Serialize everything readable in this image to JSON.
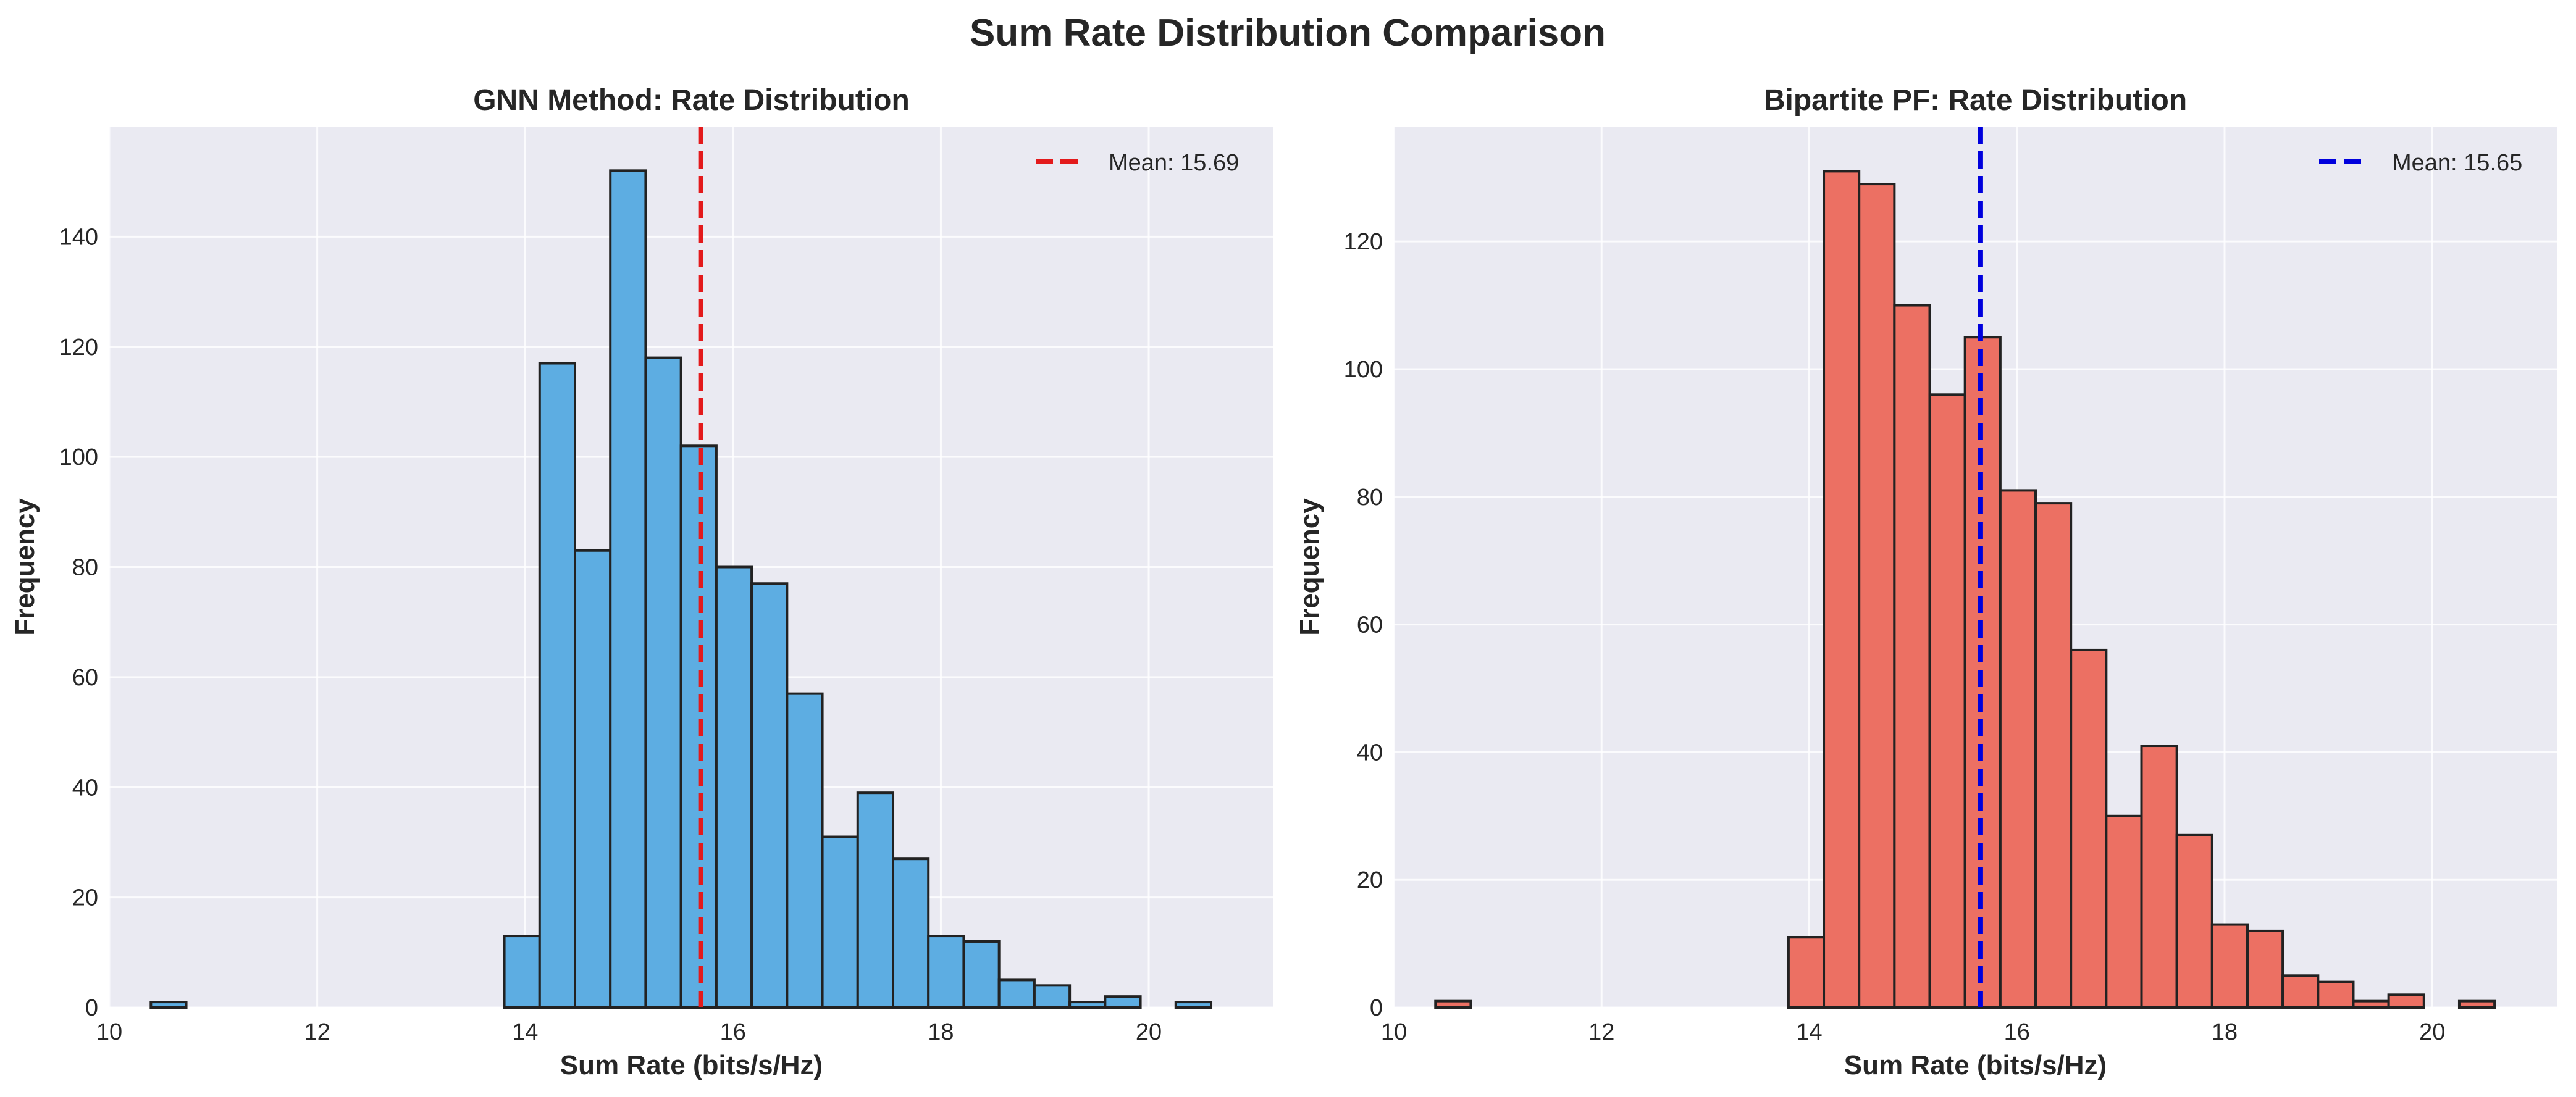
{
  "figure": {
    "title": "Sum Rate Distribution Comparison"
  },
  "chart_data": [
    {
      "type": "bar",
      "title": "GNN Method: Rate Distribution",
      "xlabel": "Sum Rate (bits/s/Hz)",
      "ylabel": "Frequency",
      "xlim": [
        10.0,
        21.2
      ],
      "ylim": [
        0,
        160
      ],
      "xticks": [
        10,
        12,
        14,
        16,
        18,
        20
      ],
      "yticks": [
        0,
        20,
        40,
        60,
        80,
        100,
        120,
        140
      ],
      "grid": true,
      "legend_position": "top-right",
      "bar_color": "#5dade2",
      "bin_width": 0.34,
      "bins": [
        {
          "x0": 10.4,
          "count": 1
        },
        {
          "x0": 13.8,
          "count": 13
        },
        {
          "x0": 14.14,
          "count": 117
        },
        {
          "x0": 14.48,
          "count": 83
        },
        {
          "x0": 14.82,
          "count": 152
        },
        {
          "x0": 15.16,
          "count": 118
        },
        {
          "x0": 15.5,
          "count": 102
        },
        {
          "x0": 15.84,
          "count": 80
        },
        {
          "x0": 16.18,
          "count": 77
        },
        {
          "x0": 16.52,
          "count": 57
        },
        {
          "x0": 16.86,
          "count": 31
        },
        {
          "x0": 17.2,
          "count": 39
        },
        {
          "x0": 17.54,
          "count": 27
        },
        {
          "x0": 17.88,
          "count": 13
        },
        {
          "x0": 18.22,
          "count": 12
        },
        {
          "x0": 18.56,
          "count": 5
        },
        {
          "x0": 18.9,
          "count": 4
        },
        {
          "x0": 19.24,
          "count": 1
        },
        {
          "x0": 19.58,
          "count": 2
        },
        {
          "x0": 20.26,
          "count": 1
        }
      ],
      "mean": {
        "value": 15.69,
        "label": "Mean: 15.69",
        "color": "#e31a1c"
      }
    },
    {
      "type": "bar",
      "title": "Bipartite PF: Rate Distribution",
      "xlabel": "Sum Rate (bits/s/Hz)",
      "ylabel": "Frequency",
      "xlim": [
        10.0,
        21.2
      ],
      "ylim": [
        0,
        138
      ],
      "xticks": [
        10,
        12,
        14,
        16,
        18,
        20
      ],
      "yticks": [
        0,
        20,
        40,
        60,
        80,
        100,
        120
      ],
      "grid": true,
      "legend_position": "top-right",
      "bar_color": "#ec7063",
      "bin_width": 0.34,
      "bins": [
        {
          "x0": 10.4,
          "count": 1
        },
        {
          "x0": 13.8,
          "count": 11
        },
        {
          "x0": 14.14,
          "count": 131
        },
        {
          "x0": 14.48,
          "count": 129
        },
        {
          "x0": 14.82,
          "count": 110
        },
        {
          "x0": 15.16,
          "count": 96
        },
        {
          "x0": 15.5,
          "count": 105
        },
        {
          "x0": 15.84,
          "count": 81
        },
        {
          "x0": 16.18,
          "count": 79
        },
        {
          "x0": 16.52,
          "count": 56
        },
        {
          "x0": 16.86,
          "count": 30
        },
        {
          "x0": 17.2,
          "count": 41
        },
        {
          "x0": 17.54,
          "count": 27
        },
        {
          "x0": 17.88,
          "count": 13
        },
        {
          "x0": 18.22,
          "count": 12
        },
        {
          "x0": 18.56,
          "count": 5
        },
        {
          "x0": 18.9,
          "count": 4
        },
        {
          "x0": 19.24,
          "count": 1
        },
        {
          "x0": 19.58,
          "count": 2
        },
        {
          "x0": 20.26,
          "count": 1
        }
      ],
      "mean": {
        "value": 15.65,
        "label": "Mean: 15.65",
        "color": "#0000dd"
      }
    }
  ]
}
